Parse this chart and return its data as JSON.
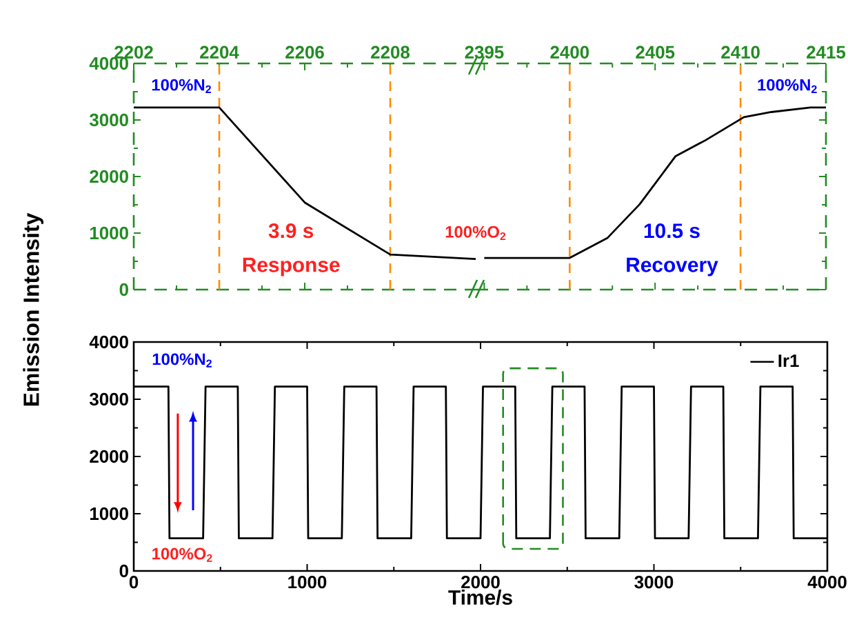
{
  "chart_data": [
    {
      "type": "line",
      "x": [
        2202,
        2204,
        2206,
        2208,
        2210
      ],
      "values": [
        3220,
        3220,
        1540,
        620,
        540
      ],
      "color": "#000000",
      "xlim": [
        2202,
        2210
      ],
      "xticks": [
        2202,
        2204,
        2206,
        2208
      ],
      "ylim": [
        0,
        4000
      ],
      "yticks": [
        0,
        1000,
        2000,
        3000,
        4000
      ],
      "ref_lines": [
        {
          "axis": "x",
          "value": 2204,
          "color": "#ff8c00",
          "line_style": "dashed"
        },
        {
          "axis": "x",
          "value": 2208,
          "color": "#ff8c00",
          "line_style": "dashed"
        }
      ],
      "annotations": [
        "100%N$_{2}$",
        "3.9 s",
        "Response",
        "100%O$_{2}$"
      ]
    },
    {
      "type": "line",
      "x": [
        2395,
        2400,
        2402.2,
        2404.1,
        2406.2,
        2408,
        2410.2,
        2411.8,
        2414.1,
        2415
      ],
      "values": [
        560,
        560,
        910,
        1510,
        2360,
        2650,
        3050,
        3140,
        3220,
        3220
      ],
      "color": "#000000",
      "xlim": [
        2394.5,
        2415
      ],
      "xticks": [
        2395,
        2400,
        2405,
        2410,
        2415
      ],
      "ylim": [
        0,
        4000
      ],
      "yticks": [
        0,
        1000,
        2000,
        3000,
        4000
      ],
      "tick_labels": "x",
      "ref_lines": [
        {
          "axis": "x",
          "value": 2400,
          "color": "#ff8c00",
          "line_style": "dashed"
        },
        {
          "axis": "x",
          "value": 2410,
          "color": "#ff8c00",
          "line_style": "dashed"
        }
      ],
      "annotations": [
        "10.5 s",
        "Recovery",
        "100%N$_{2}$"
      ]
    },
    {
      "type": "line",
      "xlabel": "Time/s",
      "ylabel": "Emission Intensity",
      "xlim": [
        0,
        4000
      ],
      "xticks": [
        0,
        1000,
        2000,
        3000,
        4000
      ],
      "ylim": [
        0,
        4000
      ],
      "yticks": [
        0,
        1000,
        2000,
        3000,
        4000
      ],
      "legend": "top right",
      "series": [
        {
          "name": "Ir1",
          "color": "#000000",
          "x": [
            0,
            200,
            206,
            400,
            414,
            600,
            606,
            800,
            814,
            1000,
            1006,
            1200,
            1214,
            1400,
            1406,
            1600,
            1614,
            1800,
            1806,
            2000,
            2014,
            2200,
            2206,
            2400,
            2414,
            2600,
            2606,
            2800,
            2814,
            3000,
            3006,
            3200,
            3214,
            3400,
            3406,
            3600,
            3614,
            3800,
            3806,
            4000
          ],
          "values": [
            3220,
            3220,
            570,
            570,
            3220,
            3220,
            570,
            570,
            3220,
            3220,
            570,
            570,
            3220,
            3220,
            570,
            570,
            3220,
            3220,
            570,
            570,
            3220,
            3220,
            570,
            570,
            3220,
            3220,
            570,
            570,
            3220,
            3220,
            570,
            570,
            3220,
            3220,
            570,
            570,
            3220,
            3220,
            570,
            570
          ]
        }
      ],
      "annotations": [
        "100%N$_{2}$",
        "100%O$_{2}$"
      ]
    }
  ]
}
